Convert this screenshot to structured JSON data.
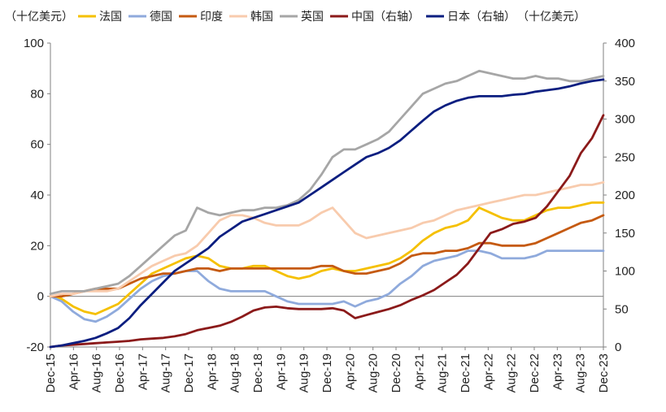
{
  "chart_data": {
    "type": "line",
    "legend_position": "top",
    "unit_note": "（十亿美元）",
    "xlabel": "",
    "ylabel_left": "",
    "ylabel_right": "",
    "left_axis": {
      "ylim": [
        -20,
        100
      ],
      "ticks": [
        "-20",
        "0",
        "20",
        "40",
        "60",
        "80",
        "100"
      ],
      "negative_tick_color": "#ff0000"
    },
    "right_axis": {
      "ylim": [
        0,
        400
      ],
      "ticks": [
        "0",
        "50",
        "100",
        "150",
        "200",
        "250",
        "300",
        "350",
        "400"
      ]
    },
    "x_tick_labels": [
      "Dec-15",
      "Apr-16",
      "Aug-16",
      "Dec-16",
      "Apr-17",
      "Aug-17",
      "Dec-17",
      "Apr-18",
      "Aug-18",
      "Dec-18",
      "Apr-19",
      "Aug-19",
      "Dec-19",
      "Apr-20",
      "Aug-20",
      "Dec-20",
      "Apr-21",
      "Aug-21",
      "Dec-21",
      "Apr-22",
      "Aug-22",
      "Dec-22",
      "Apr-23",
      "Aug-23",
      "Dec-23"
    ],
    "grid": false,
    "x": [
      "Dec-15",
      "Feb-16",
      "Apr-16",
      "Jun-16",
      "Aug-16",
      "Oct-16",
      "Dec-16",
      "Feb-17",
      "Apr-17",
      "Jun-17",
      "Aug-17",
      "Oct-17",
      "Dec-17",
      "Feb-18",
      "Apr-18",
      "Jun-18",
      "Aug-18",
      "Oct-18",
      "Dec-18",
      "Feb-19",
      "Apr-19",
      "Jun-19",
      "Aug-19",
      "Oct-19",
      "Dec-19",
      "Feb-20",
      "Apr-20",
      "Jun-20",
      "Aug-20",
      "Oct-20",
      "Dec-20",
      "Feb-21",
      "Apr-21",
      "Jun-21",
      "Aug-21",
      "Oct-21",
      "Dec-21",
      "Feb-22",
      "Apr-22",
      "Jun-22",
      "Aug-22",
      "Oct-22",
      "Dec-22",
      "Feb-23",
      "Apr-23",
      "Jun-23",
      "Aug-23",
      "Oct-23",
      "Dec-23",
      "Jan-24"
    ],
    "series": [
      {
        "name": "法国",
        "axis": "left",
        "color": "#f5c000",
        "values": [
          0,
          -1,
          -4,
          -6,
          -7,
          -5,
          -3,
          1,
          5,
          9,
          11,
          13,
          15,
          16,
          15,
          12,
          11,
          11,
          12,
          12,
          10,
          8,
          7,
          8,
          10,
          11,
          10,
          10,
          11,
          12,
          13,
          15,
          18,
          22,
          25,
          27,
          28,
          30,
          35,
          33,
          31,
          30,
          30,
          32,
          34,
          35,
          35,
          36,
          37,
          37
        ]
      },
      {
        "name": "德国",
        "axis": "left",
        "color": "#8faadc",
        "values": [
          0,
          -2,
          -6,
          -9,
          -10,
          -8,
          -5,
          -1,
          3,
          6,
          8,
          9,
          10,
          10,
          6,
          3,
          2,
          2,
          2,
          2,
          0,
          -2,
          -3,
          -3,
          -3,
          -3,
          -2,
          -4,
          -2,
          -1,
          1,
          5,
          8,
          12,
          14,
          15,
          16,
          18,
          18,
          17,
          15,
          15,
          15,
          16,
          18,
          18,
          18,
          18,
          18,
          18
        ]
      },
      {
        "name": "印度",
        "axis": "left",
        "color": "#c55a11",
        "values": [
          0,
          0,
          1,
          2,
          3,
          3,
          3,
          5,
          7,
          8,
          9,
          9,
          10,
          11,
          11,
          10,
          11,
          11,
          11,
          11,
          11,
          11,
          11,
          11,
          12,
          12,
          10,
          9,
          9,
          10,
          11,
          13,
          16,
          17,
          17,
          18,
          18,
          19,
          21,
          21,
          20,
          20,
          20,
          21,
          23,
          25,
          27,
          29,
          30,
          32
        ]
      },
      {
        "name": "韩国",
        "axis": "left",
        "color": "#f8cbad",
        "values": [
          0,
          1,
          1,
          2,
          2,
          2,
          3,
          6,
          9,
          12,
          14,
          16,
          17,
          20,
          25,
          30,
          32,
          32,
          31,
          29,
          28,
          28,
          28,
          30,
          33,
          35,
          30,
          25,
          23,
          24,
          25,
          26,
          27,
          29,
          30,
          32,
          34,
          35,
          36,
          37,
          38,
          39,
          40,
          40,
          41,
          42,
          43,
          44,
          44,
          45
        ]
      },
      {
        "name": "英国",
        "axis": "left",
        "color": "#a6a6a6",
        "values": [
          1,
          2,
          2,
          2,
          3,
          4,
          5,
          8,
          12,
          16,
          20,
          24,
          26,
          35,
          33,
          32,
          33,
          34,
          34,
          35,
          35,
          36,
          38,
          42,
          48,
          55,
          58,
          58,
          60,
          62,
          65,
          70,
          75,
          80,
          82,
          84,
          85,
          87,
          89,
          88,
          87,
          86,
          86,
          87,
          86,
          86,
          85,
          85,
          86,
          87
        ]
      },
      {
        "name": "中国（右轴）",
        "axis": "right",
        "color": "#8b1a1a",
        "values": [
          0,
          2,
          3,
          4,
          5,
          6,
          7,
          8,
          10,
          11,
          12,
          14,
          17,
          22,
          25,
          28,
          33,
          40,
          48,
          52,
          53,
          51,
          50,
          50,
          50,
          51,
          48,
          38,
          42,
          46,
          50,
          55,
          62,
          68,
          75,
          85,
          95,
          110,
          130,
          150,
          155,
          162,
          165,
          170,
          185,
          205,
          225,
          255,
          275,
          305
        ]
      },
      {
        "name": "日本（右轴）",
        "axis": "right",
        "color": "#0b1e80",
        "values": [
          0,
          2,
          5,
          8,
          12,
          18,
          25,
          38,
          55,
          70,
          85,
          100,
          110,
          120,
          130,
          145,
          155,
          165,
          170,
          175,
          180,
          185,
          190,
          200,
          210,
          220,
          230,
          240,
          250,
          255,
          262,
          272,
          285,
          298,
          310,
          318,
          324,
          328,
          330,
          330,
          330,
          332,
          333,
          336,
          338,
          340,
          343,
          347,
          350,
          352
        ]
      }
    ]
  }
}
